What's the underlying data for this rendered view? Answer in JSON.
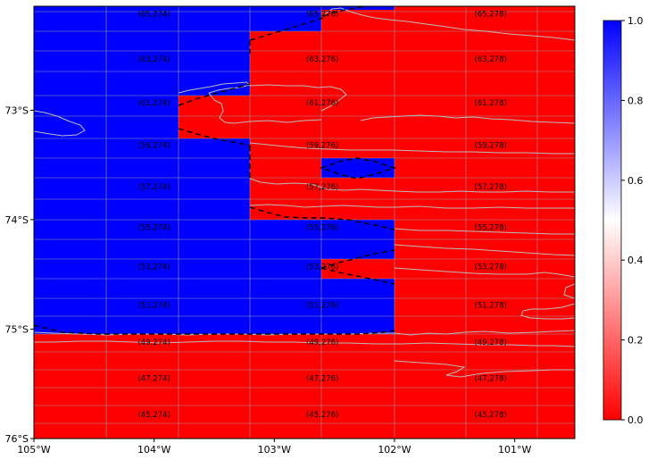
{
  "map": {
    "type": "heatmap",
    "x_axis": {
      "unit": "°W",
      "range": [
        -105,
        -100.5
      ],
      "ticks": [
        {
          "value": -105,
          "label": "105°W"
        },
        {
          "value": -104,
          "label": "104°W"
        },
        {
          "value": -103,
          "label": "103°W"
        },
        {
          "value": -102,
          "label": "102°W"
        },
        {
          "value": -101,
          "label": "101°W"
        }
      ]
    },
    "y_axis": {
      "unit": "°S",
      "range": [
        -76,
        -72.05
      ],
      "ticks": [
        {
          "value": -73,
          "label": "73°S"
        },
        {
          "value": -74,
          "label": "74°S"
        },
        {
          "value": -75,
          "label": "75°S"
        },
        {
          "value": -76,
          "label": "76°S"
        }
      ]
    },
    "colorbar": {
      "range": [
        0,
        1
      ],
      "colormap": "bwr_r",
      "colors": {
        "low": "#ff0000",
        "mid": "#ffffff",
        "high": "#0000ff"
      },
      "ticks": [
        "0.0",
        "0.2",
        "0.4",
        "0.6",
        "0.8",
        "1.0"
      ]
    },
    "grid": true,
    "colors": {
      "blue": "#0000ff",
      "red": "#ff0000",
      "coast": "#bbbbbb",
      "boundary": "#000000",
      "grid": "#9a9a9a"
    },
    "cells": [
      {
        "label": "(65,274)",
        "lon": -104.0,
        "lat": -72.12
      },
      {
        "label": "(65,276)",
        "lon": -102.6,
        "lat": -72.12
      },
      {
        "label": "(65,278)",
        "lon": -101.2,
        "lat": -72.12
      },
      {
        "label": "(63,274)",
        "lon": -104.0,
        "lat": -72.53
      },
      {
        "label": "(63,276)",
        "lon": -102.6,
        "lat": -72.53
      },
      {
        "label": "(63,278)",
        "lon": -101.2,
        "lat": -72.53
      },
      {
        "label": "(61,274)",
        "lon": -104.0,
        "lat": -72.93
      },
      {
        "label": "(61,276)",
        "lon": -102.6,
        "lat": -72.93
      },
      {
        "label": "(61,278)",
        "lon": -101.2,
        "lat": -72.93
      },
      {
        "label": "(59,274)",
        "lon": -104.0,
        "lat": -73.32
      },
      {
        "label": "(59,276)",
        "lon": -102.6,
        "lat": -73.32
      },
      {
        "label": "(59,278)",
        "lon": -101.2,
        "lat": -73.32
      },
      {
        "label": "(57,274)",
        "lon": -104.0,
        "lat": -73.7
      },
      {
        "label": "(57,276)",
        "lon": -102.6,
        "lat": -73.7
      },
      {
        "label": "(57,278)",
        "lon": -101.2,
        "lat": -73.7
      },
      {
        "label": "(55,274)",
        "lon": -104.0,
        "lat": -74.07
      },
      {
        "label": "(55,276)",
        "lon": -102.6,
        "lat": -74.07
      },
      {
        "label": "(55,278)",
        "lon": -101.2,
        "lat": -74.07
      },
      {
        "label": "(53,274)",
        "lon": -104.0,
        "lat": -74.43
      },
      {
        "label": "(53,276)",
        "lon": -102.6,
        "lat": -74.43
      },
      {
        "label": "(53,278)",
        "lon": -101.2,
        "lat": -74.43
      },
      {
        "label": "(51,274)",
        "lon": -104.0,
        "lat": -74.78
      },
      {
        "label": "(51,276)",
        "lon": -102.6,
        "lat": -74.78
      },
      {
        "label": "(51,278)",
        "lon": -101.2,
        "lat": -74.78
      },
      {
        "label": "(49,274)",
        "lon": -104.0,
        "lat": -75.12
      },
      {
        "label": "(49,276)",
        "lon": -102.6,
        "lat": -75.12
      },
      {
        "label": "(49,278)",
        "lon": -101.2,
        "lat": -75.12
      },
      {
        "label": "(47,274)",
        "lon": -104.0,
        "lat": -75.45
      },
      {
        "label": "(47,276)",
        "lon": -102.6,
        "lat": -75.45
      },
      {
        "label": "(47,278)",
        "lon": -101.2,
        "lat": -75.45
      },
      {
        "label": "(45,274)",
        "lon": -104.0,
        "lat": -75.78
      },
      {
        "label": "(45,276)",
        "lon": -102.6,
        "lat": -75.78
      },
      {
        "label": "(45,278)",
        "lon": -101.2,
        "lat": -75.78
      }
    ]
  }
}
